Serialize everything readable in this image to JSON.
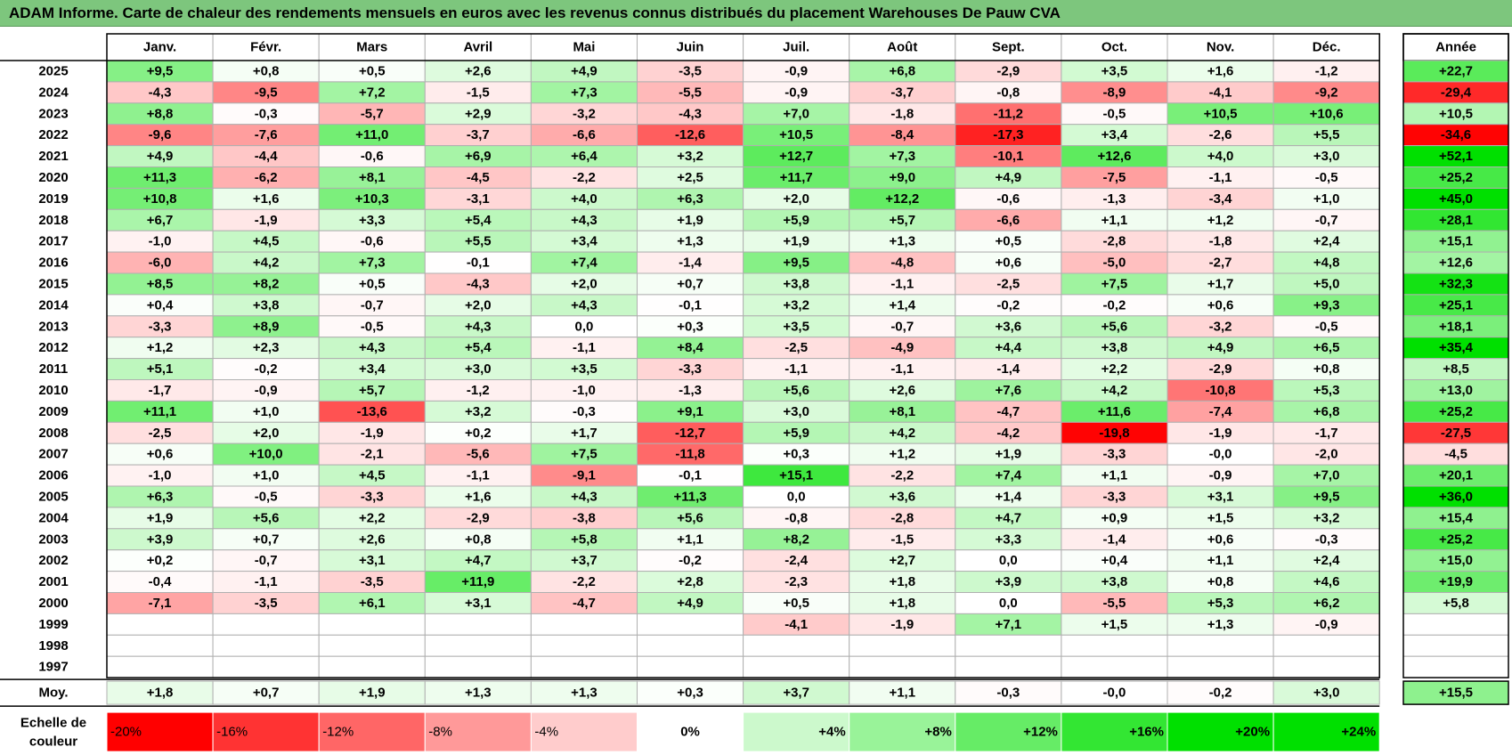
{
  "title": "ADAM Informe. Carte de chaleur des rendements mensuels en euros avec les revenus connus distribués du placement Warehouses De Pauw CVA",
  "chart_data": {
    "type": "heatmap",
    "title": "ADAM Informe. Carte de chaleur des rendements mensuels en euros avec les revenus connus distribués du placement Warehouses De Pauw CVA",
    "columns": [
      "Janv.",
      "Févr.",
      "Mars",
      "Avril",
      "Mai",
      "Juin",
      "Juil.",
      "Août",
      "Sept.",
      "Oct.",
      "Nov.",
      "Déc."
    ],
    "year_column_label": "Année",
    "average_row_label": "Moy.",
    "rows": [
      {
        "year": "2025",
        "months": [
          "+9,5",
          "+0,8",
          "+0,5",
          "+2,6",
          "+4,9",
          "-3,5",
          "-0,9",
          "+6,8",
          "-2,9",
          "+3,5",
          "+1,6",
          "-1,2"
        ],
        "annual": "+22,7"
      },
      {
        "year": "2024",
        "months": [
          "-4,3",
          "-9,5",
          "+7,2",
          "-1,5",
          "+7,3",
          "-5,5",
          "-0,9",
          "-3,7",
          "-0,8",
          "-8,9",
          "-4,1",
          "-9,2"
        ],
        "annual": "-29,4"
      },
      {
        "year": "2023",
        "months": [
          "+8,8",
          "-0,3",
          "-5,7",
          "+2,9",
          "-3,2",
          "-4,3",
          "+7,0",
          "-1,8",
          "-11,2",
          "-0,5",
          "+10,5",
          "+10,6"
        ],
        "annual": "+10,5"
      },
      {
        "year": "2022",
        "months": [
          "-9,6",
          "-7,6",
          "+11,0",
          "-3,7",
          "-6,6",
          "-12,6",
          "+10,5",
          "-8,4",
          "-17,3",
          "+3,4",
          "-2,6",
          "+5,5"
        ],
        "annual": "-34,6"
      },
      {
        "year": "2021",
        "months": [
          "+4,9",
          "-4,4",
          "-0,6",
          "+6,9",
          "+6,4",
          "+3,2",
          "+12,7",
          "+7,3",
          "-10,1",
          "+12,6",
          "+4,0",
          "+3,0"
        ],
        "annual": "+52,1"
      },
      {
        "year": "2020",
        "months": [
          "+11,3",
          "-6,2",
          "+8,1",
          "-4,5",
          "-2,2",
          "+2,5",
          "+11,7",
          "+9,0",
          "+4,9",
          "-7,5",
          "-1,1",
          "-0,5"
        ],
        "annual": "+25,2"
      },
      {
        "year": "2019",
        "months": [
          "+10,8",
          "+1,6",
          "+10,3",
          "-3,1",
          "+4,0",
          "+6,3",
          "+2,0",
          "+12,2",
          "-0,6",
          "-1,3",
          "-3,4",
          "+1,0"
        ],
        "annual": "+45,0"
      },
      {
        "year": "2018",
        "months": [
          "+6,7",
          "-1,9",
          "+3,3",
          "+5,4",
          "+4,3",
          "+1,9",
          "+5,9",
          "+5,7",
          "-6,6",
          "+1,1",
          "+1,2",
          "-0,7"
        ],
        "annual": "+28,1"
      },
      {
        "year": "2017",
        "months": [
          "-1,0",
          "+4,5",
          "-0,6",
          "+5,5",
          "+3,4",
          "+1,3",
          "+1,9",
          "+1,3",
          "+0,5",
          "-2,8",
          "-1,8",
          "+2,4"
        ],
        "annual": "+15,1"
      },
      {
        "year": "2016",
        "months": [
          "-6,0",
          "+4,2",
          "+7,3",
          "-0,1",
          "+7,4",
          "-1,4",
          "+9,5",
          "-4,8",
          "+0,6",
          "-5,0",
          "-2,7",
          "+4,8"
        ],
        "annual": "+12,6"
      },
      {
        "year": "2015",
        "months": [
          "+8,5",
          "+8,2",
          "+0,5",
          "-4,3",
          "+2,0",
          "+0,7",
          "+3,8",
          "-1,1",
          "-2,5",
          "+7,5",
          "+1,7",
          "+5,0"
        ],
        "annual": "+32,3"
      },
      {
        "year": "2014",
        "months": [
          "+0,4",
          "+3,8",
          "-0,7",
          "+2,0",
          "+4,3",
          "-0,1",
          "+3,2",
          "+1,4",
          "-0,2",
          "-0,2",
          "+0,6",
          "+9,3"
        ],
        "annual": "+25,1"
      },
      {
        "year": "2013",
        "months": [
          "-3,3",
          "+8,9",
          "-0,5",
          "+4,3",
          "0,0",
          "+0,3",
          "+3,5",
          "-0,7",
          "+3,6",
          "+5,6",
          "-3,2",
          "-0,5"
        ],
        "annual": "+18,1"
      },
      {
        "year": "2012",
        "months": [
          "+1,2",
          "+2,3",
          "+4,3",
          "+5,4",
          "-1,1",
          "+8,4",
          "-2,5",
          "-4,9",
          "+4,4",
          "+3,8",
          "+4,9",
          "+6,5"
        ],
        "annual": "+35,4"
      },
      {
        "year": "2011",
        "months": [
          "+5,1",
          "-0,2",
          "+3,4",
          "+3,0",
          "+3,5",
          "-3,3",
          "-1,1",
          "-1,1",
          "-1,4",
          "+2,2",
          "-2,9",
          "+0,8"
        ],
        "annual": "+8,5"
      },
      {
        "year": "2010",
        "months": [
          "-1,7",
          "-0,9",
          "+5,7",
          "-1,2",
          "-1,0",
          "-1,3",
          "+5,6",
          "+2,6",
          "+7,6",
          "+4,2",
          "-10,8",
          "+5,3"
        ],
        "annual": "+13,0"
      },
      {
        "year": "2009",
        "months": [
          "+11,1",
          "+1,0",
          "-13,6",
          "+3,2",
          "-0,3",
          "+9,1",
          "+3,0",
          "+8,1",
          "-4,7",
          "+11,6",
          "-7,4",
          "+6,8"
        ],
        "annual": "+25,2"
      },
      {
        "year": "2008",
        "months": [
          "-2,5",
          "+2,0",
          "-1,9",
          "+0,2",
          "+1,7",
          "-12,7",
          "+5,9",
          "+4,2",
          "-4,2",
          "-19,8",
          "-1,9",
          "-1,7"
        ],
        "annual": "-27,5"
      },
      {
        "year": "2007",
        "months": [
          "+0,6",
          "+10,0",
          "-2,1",
          "-5,6",
          "+7,5",
          "-11,8",
          "+0,3",
          "+1,2",
          "+1,9",
          "-3,3",
          "-0,0",
          "-2,0"
        ],
        "annual": "-4,5"
      },
      {
        "year": "2006",
        "months": [
          "-1,0",
          "+1,0",
          "+4,5",
          "-1,1",
          "-9,1",
          "-0,1",
          "+15,1",
          "-2,2",
          "+7,4",
          "+1,1",
          "-0,9",
          "+7,0"
        ],
        "annual": "+20,1"
      },
      {
        "year": "2005",
        "months": [
          "+6,3",
          "-0,5",
          "-3,3",
          "+1,6",
          "+4,3",
          "+11,3",
          "0,0",
          "+3,6",
          "+1,4",
          "-3,3",
          "+3,1",
          "+9,5"
        ],
        "annual": "+36,0"
      },
      {
        "year": "2004",
        "months": [
          "+1,9",
          "+5,6",
          "+2,2",
          "-2,9",
          "-3,8",
          "+5,6",
          "-0,8",
          "-2,8",
          "+4,7",
          "+0,9",
          "+1,5",
          "+3,2"
        ],
        "annual": "+15,4"
      },
      {
        "year": "2003",
        "months": [
          "+3,9",
          "+0,7",
          "+2,6",
          "+0,8",
          "+5,8",
          "+1,1",
          "+8,2",
          "-1,5",
          "+3,3",
          "-1,4",
          "+0,6",
          "-0,3"
        ],
        "annual": "+25,2"
      },
      {
        "year": "2002",
        "months": [
          "+0,2",
          "-0,7",
          "+3,1",
          "+4,7",
          "+3,7",
          "-0,2",
          "-2,4",
          "+2,7",
          "0,0",
          "+0,4",
          "+1,1",
          "+2,4"
        ],
        "annual": "+15,0"
      },
      {
        "year": "2001",
        "months": [
          "-0,4",
          "-1,1",
          "-3,5",
          "+11,9",
          "-2,2",
          "+2,8",
          "-2,3",
          "+1,8",
          "+3,9",
          "+3,8",
          "+0,8",
          "+4,6"
        ],
        "annual": "+19,9"
      },
      {
        "year": "2000",
        "months": [
          "-7,1",
          "-3,5",
          "+6,1",
          "+3,1",
          "-4,7",
          "+4,9",
          "+0,5",
          "+1,8",
          "0,0",
          "-5,5",
          "+5,3",
          "+6,2"
        ],
        "annual": "+5,8"
      },
      {
        "year": "1999",
        "months": [
          "",
          "",
          "",
          "",
          "",
          "",
          "-4,1",
          "-1,9",
          "+7,1",
          "+1,5",
          "+1,3",
          "-0,9"
        ],
        "annual": ""
      },
      {
        "year": "1998",
        "months": [
          "",
          "",
          "",
          "",
          "",
          "",
          "",
          "",
          "",
          "",
          "",
          ""
        ],
        "annual": ""
      },
      {
        "year": "1997",
        "months": [
          "",
          "",
          "",
          "",
          "",
          "",
          "",
          "",
          "",
          "",
          "",
          ""
        ],
        "annual": ""
      }
    ],
    "average": {
      "label": "Moy.",
      "months": [
        "+1,8",
        "+0,7",
        "+1,9",
        "+1,3",
        "+1,3",
        "+0,3",
        "+3,7",
        "+1,1",
        "-0,3",
        "-0,0",
        "-0,2",
        "+3,0"
      ],
      "annual": "+15,5"
    },
    "scale": {
      "label_line1": "Echelle de",
      "label_line2": "couleur",
      "steps": [
        "-20%",
        "-16%",
        "-12%",
        "-8%",
        "-4%",
        "0%",
        "+4%",
        "+8%",
        "+12%",
        "+16%",
        "+20%",
        "+24%"
      ],
      "step_values": [
        -20,
        -16,
        -12,
        -8,
        -4,
        0,
        4,
        8,
        12,
        16,
        20,
        24
      ]
    },
    "colors": {
      "title_bg": "#7dc67d",
      "negative_max": "#ff0000",
      "positive_max": "#00e000",
      "neutral": "#ffffff"
    }
  }
}
